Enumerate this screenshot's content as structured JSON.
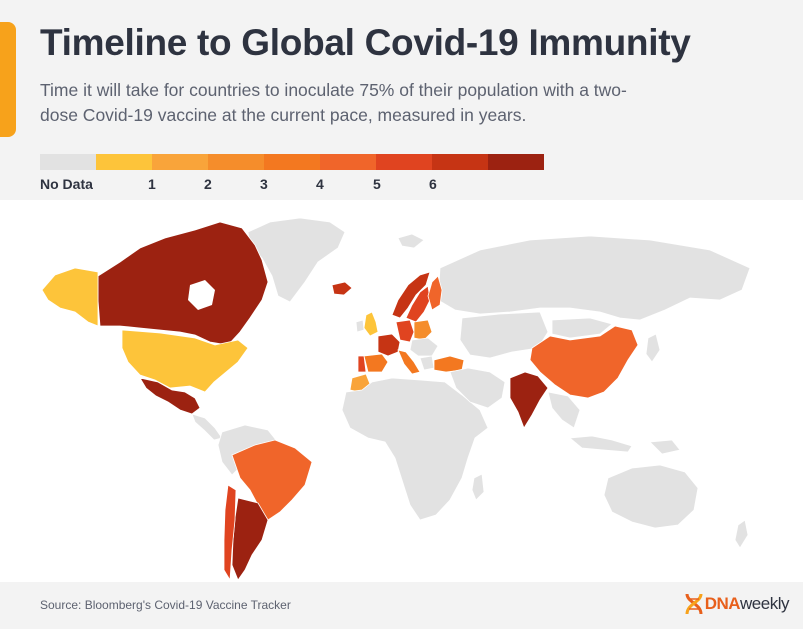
{
  "header": {
    "title": "Timeline to Global Covid-19 Immunity",
    "subtitle": "Time it will take for countries to inoculate 75% of their population with a two-dose Covid-19 vaccine at the current pace, measured in years."
  },
  "legend": {
    "items": [
      {
        "label": "No Data",
        "color": "#e2e2e2"
      },
      {
        "label": "",
        "color": "#fdc43a"
      },
      {
        "label": "1",
        "color": "#f9a43a"
      },
      {
        "label": "",
        "color": "#f58d2b"
      },
      {
        "label": "2",
        "color": "#f37820"
      },
      {
        "label": "3",
        "color": "#f0652a"
      },
      {
        "label": "4",
        "color": "#e04420"
      },
      {
        "label": "5",
        "color": "#c63414"
      },
      {
        "label": "6",
        "color": "#9c2211"
      }
    ],
    "tick_labels": [
      "No Data",
      "1",
      "2",
      "3",
      "4",
      "5",
      "6"
    ]
  },
  "map": {
    "no_data_color": "#e2e2e2",
    "regions": [
      {
        "name": "Canada",
        "color": "#9c2211"
      },
      {
        "name": "Alaska",
        "color": "#fdc43a"
      },
      {
        "name": "United States",
        "color": "#fdc43a"
      },
      {
        "name": "Mexico",
        "color": "#9c2211"
      },
      {
        "name": "Brazil",
        "color": "#f0652a"
      },
      {
        "name": "Argentina",
        "color": "#9c2211"
      },
      {
        "name": "Chile",
        "color": "#e04420"
      },
      {
        "name": "Greenland",
        "color": "#e2e2e2"
      },
      {
        "name": "Iceland",
        "color": "#c63414"
      },
      {
        "name": "Norway",
        "color": "#c63414"
      },
      {
        "name": "Sweden",
        "color": "#e04420"
      },
      {
        "name": "Finland",
        "color": "#f0652a"
      },
      {
        "name": "United Kingdom",
        "color": "#fdc43a"
      },
      {
        "name": "France",
        "color": "#c63414"
      },
      {
        "name": "Spain",
        "color": "#f37820"
      },
      {
        "name": "Portugal",
        "color": "#e04420"
      },
      {
        "name": "Germany",
        "color": "#e04420"
      },
      {
        "name": "Poland",
        "color": "#f58d2b"
      },
      {
        "name": "Italy",
        "color": "#f37820"
      },
      {
        "name": "Turkey",
        "color": "#f37820"
      },
      {
        "name": "Morocco",
        "color": "#f9a43a"
      },
      {
        "name": "China",
        "color": "#f0652a"
      },
      {
        "name": "India",
        "color": "#9c2211"
      },
      {
        "name": "Russia",
        "color": "#e2e2e2"
      },
      {
        "name": "Africa",
        "color": "#e2e2e2"
      },
      {
        "name": "Australia",
        "color": "#e2e2e2"
      }
    ]
  },
  "footer": {
    "source": "Source: Bloomberg's Covid-19 Vaccine Tracker",
    "logo_bold": "DNA",
    "logo_light": "weekly",
    "logo_icon": "dna-icon"
  }
}
